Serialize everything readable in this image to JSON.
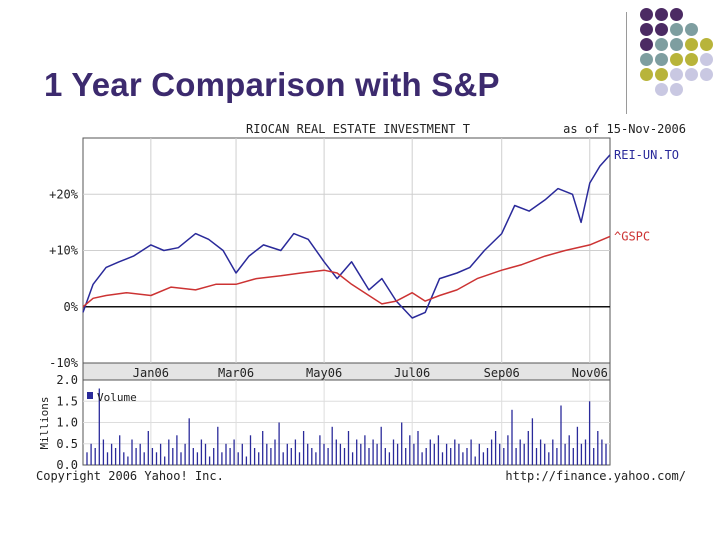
{
  "slide": {
    "title": "1 Year Comparison with S&P",
    "colors": {
      "title": "#3c2a6e",
      "dot_purple": "#4b2a63",
      "dot_teal": "#7e9ea0",
      "dot_olive": "#b8b43a",
      "dot_lavender": "#c9c8e2"
    },
    "decor_dots": [
      [
        "purple",
        "purple",
        "purple",
        "",
        ""
      ],
      [
        "purple",
        "purple",
        "teal",
        "teal",
        ""
      ],
      [
        "purple",
        "teal",
        "teal",
        "olive",
        "olive"
      ],
      [
        "teal",
        "teal",
        "olive",
        "olive",
        "lavender"
      ],
      [
        "olive",
        "olive",
        "lavender",
        "lavender",
        "lavender"
      ],
      [
        "",
        "lavender",
        "lavender",
        "",
        ""
      ]
    ]
  },
  "chart_data": {
    "type": "line",
    "title": "RIOCAN REAL ESTATE INVESTMENT T",
    "date_label": "as of 15-Nov-2006",
    "ylim": [
      -10,
      30
    ],
    "y_ticks": [
      20,
      10,
      0,
      -10
    ],
    "y_tick_labels": [
      "+20%",
      "+10%",
      "0%",
      "-10%"
    ],
    "x_range": [
      "2005-11-15",
      "2006-11-15"
    ],
    "x_ticks": [
      "2006-01-01",
      "2006-03-01",
      "2006-05-01",
      "2006-07-01",
      "2006-09-01",
      "2006-11-01"
    ],
    "x_tick_labels": [
      "Jan06",
      "Mar06",
      "May06",
      "Jul06",
      "Sep06",
      "Nov06"
    ],
    "series": [
      {
        "name": "REI-UN.TO",
        "color": "#2a2a9a",
        "points": [
          [
            "2005-11-15",
            -1
          ],
          [
            "2005-11-22",
            4
          ],
          [
            "2005-12-01",
            7
          ],
          [
            "2005-12-10",
            8
          ],
          [
            "2005-12-20",
            9
          ],
          [
            "2006-01-01",
            11
          ],
          [
            "2006-01-10",
            10
          ],
          [
            "2006-01-20",
            10.5
          ],
          [
            "2006-02-01",
            13
          ],
          [
            "2006-02-10",
            12
          ],
          [
            "2006-02-20",
            10
          ],
          [
            "2006-03-01",
            6
          ],
          [
            "2006-03-10",
            9
          ],
          [
            "2006-03-20",
            11
          ],
          [
            "2006-04-01",
            10
          ],
          [
            "2006-04-10",
            13
          ],
          [
            "2006-04-20",
            12
          ],
          [
            "2006-05-01",
            8
          ],
          [
            "2006-05-10",
            5
          ],
          [
            "2006-05-20",
            8
          ],
          [
            "2006-06-01",
            3
          ],
          [
            "2006-06-10",
            5
          ],
          [
            "2006-06-20",
            1
          ],
          [
            "2006-07-01",
            -2
          ],
          [
            "2006-07-10",
            -1
          ],
          [
            "2006-07-20",
            5
          ],
          [
            "2006-08-01",
            6
          ],
          [
            "2006-08-10",
            7
          ],
          [
            "2006-08-20",
            10
          ],
          [
            "2006-09-01",
            13
          ],
          [
            "2006-09-10",
            18
          ],
          [
            "2006-09-20",
            17
          ],
          [
            "2006-10-01",
            19
          ],
          [
            "2006-10-10",
            21
          ],
          [
            "2006-10-20",
            20
          ],
          [
            "2006-10-26",
            15
          ],
          [
            "2006-11-01",
            22
          ],
          [
            "2006-11-08",
            25
          ],
          [
            "2006-11-15",
            27
          ]
        ]
      },
      {
        "name": "^GSPC",
        "color": "#cc3333",
        "points": [
          [
            "2005-11-15",
            0
          ],
          [
            "2005-11-22",
            1.5
          ],
          [
            "2005-12-01",
            2
          ],
          [
            "2005-12-15",
            2.5
          ],
          [
            "2006-01-01",
            2
          ],
          [
            "2006-01-15",
            3.5
          ],
          [
            "2006-02-01",
            3
          ],
          [
            "2006-02-15",
            4
          ],
          [
            "2006-03-01",
            4
          ],
          [
            "2006-03-15",
            5
          ],
          [
            "2006-04-01",
            5.5
          ],
          [
            "2006-04-15",
            6
          ],
          [
            "2006-05-01",
            6.5
          ],
          [
            "2006-05-10",
            6
          ],
          [
            "2006-05-20",
            4
          ],
          [
            "2006-06-01",
            2
          ],
          [
            "2006-06-10",
            0.5
          ],
          [
            "2006-06-20",
            1
          ],
          [
            "2006-07-01",
            2.5
          ],
          [
            "2006-07-10",
            1
          ],
          [
            "2006-07-20",
            2
          ],
          [
            "2006-08-01",
            3
          ],
          [
            "2006-08-15",
            5
          ],
          [
            "2006-09-01",
            6.5
          ],
          [
            "2006-09-15",
            7.5
          ],
          [
            "2006-10-01",
            9
          ],
          [
            "2006-10-15",
            10
          ],
          [
            "2006-11-01",
            11
          ],
          [
            "2006-11-15",
            12.5
          ]
        ]
      }
    ],
    "volume": {
      "label": "Volume",
      "ylabel": "Millions",
      "ylim": [
        0,
        2.0
      ],
      "y_tick_labels": [
        "2.0",
        "1.5",
        "1.0",
        "0.5",
        "0.0"
      ],
      "color": "#2a2a9a",
      "values": [
        0.3,
        0.5,
        0.4,
        1.8,
        0.6,
        0.3,
        0.5,
        0.4,
        0.7,
        0.3,
        0.2,
        0.6,
        0.4,
        0.5,
        0.3,
        0.8,
        0.4,
        0.3,
        0.5,
        0.2,
        0.6,
        0.4,
        0.7,
        0.3,
        0.5,
        1.1,
        0.4,
        0.3,
        0.6,
        0.5,
        0.2,
        0.4,
        0.9,
        0.3,
        0.5,
        0.4,
        0.6,
        0.3,
        0.5,
        0.2,
        0.7,
        0.4,
        0.3,
        0.8,
        0.5,
        0.4,
        0.6,
        1.0,
        0.3,
        0.5,
        0.4,
        0.6,
        0.3,
        0.8,
        0.5,
        0.4,
        0.3,
        0.7,
        0.5,
        0.4,
        0.9,
        0.6,
        0.5,
        0.4,
        0.8,
        0.3,
        0.6,
        0.5,
        0.7,
        0.4,
        0.6,
        0.5,
        0.9,
        0.4,
        0.3,
        0.6,
        0.5,
        1.0,
        0.4,
        0.7,
        0.5,
        0.8,
        0.3,
        0.4,
        0.6,
        0.5,
        0.7,
        0.3,
        0.5,
        0.4,
        0.6,
        0.5,
        0.3,
        0.4,
        0.6,
        0.2,
        0.5,
        0.3,
        0.4,
        0.6,
        0.8,
        0.5,
        0.4,
        0.7,
        1.3,
        0.4,
        0.6,
        0.5,
        0.8,
        1.1,
        0.4,
        0.6,
        0.5,
        0.3,
        0.6,
        0.4,
        1.4,
        0.5,
        0.7,
        0.4,
        0.9,
        0.5,
        0.6,
        1.5,
        0.4,
        0.8,
        0.6,
        0.5
      ]
    },
    "copyright": "Copyright 2006 Yahoo! Inc.",
    "source_url": "http://finance.yahoo.com/"
  }
}
